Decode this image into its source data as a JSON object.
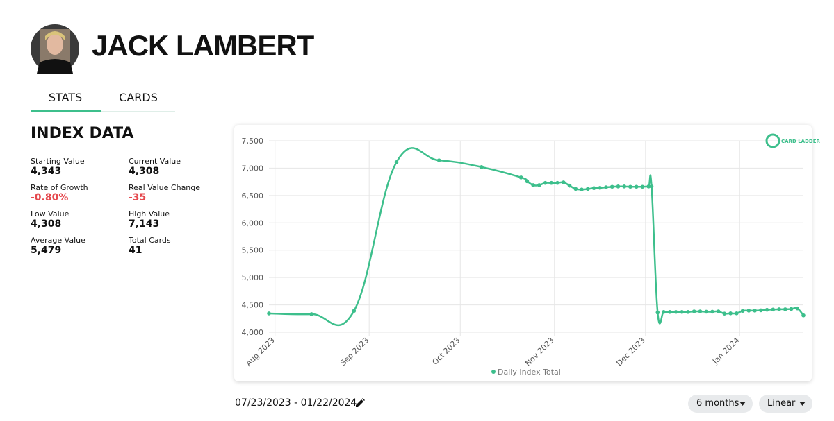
{
  "header": {
    "name": "JACK LAMBERT"
  },
  "tabs": [
    "STATS",
    "CARDS"
  ],
  "index_data": {
    "title": "INDEX DATA",
    "stats": [
      {
        "label": "Starting Value",
        "value": "4,343"
      },
      {
        "label": "Current Value",
        "value": "4,308"
      },
      {
        "label": "Rate of Growth",
        "value": "-0.80%"
      },
      {
        "label": "Real Value Change",
        "value": "-35"
      },
      {
        "label": "Low Value",
        "value": "4,308"
      },
      {
        "label": "High Value",
        "value": "7,143"
      },
      {
        "label": "Average Value",
        "value": "5,479"
      },
      {
        "label": "Total Cards",
        "value": "41"
      }
    ]
  },
  "chart_data": {
    "type": "line",
    "logo": "CARD LADDER",
    "x": [
      -2,
      12,
      26,
      40,
      54,
      68,
      81,
      83,
      85,
      87,
      89,
      91,
      93,
      95,
      97,
      99,
      101,
      103,
      105,
      107,
      109,
      111,
      113,
      115,
      117,
      119,
      121,
      123,
      124,
      126,
      128,
      130,
      132,
      134,
      136,
      138,
      140,
      142,
      144,
      146,
      148,
      150,
      152,
      154,
      156,
      158,
      160,
      162,
      164,
      166,
      168,
      170,
      172,
      174
    ],
    "series": [
      {
        "name": "Daily Index Total",
        "color": "#3dbf8c",
        "values": [
          4343,
          4330,
          4390,
          7110,
          7143,
          7020,
          6830,
          6760,
          6690,
          6690,
          6730,
          6730,
          6730,
          6740,
          6680,
          6620,
          6610,
          6620,
          6635,
          6640,
          6650,
          6660,
          6665,
          6665,
          6660,
          6660,
          6660,
          6665,
          6665,
          4360,
          4370,
          4370,
          4370,
          4370,
          4370,
          4380,
          4380,
          4375,
          4375,
          4380,
          4340,
          4345,
          4345,
          4390,
          4395,
          4395,
          4400,
          4410,
          4415,
          4420,
          4420,
          4425,
          4435,
          4308
        ]
      }
    ],
    "xlim": [
      -2,
      174
    ],
    "xticks": [
      {
        "value": 0,
        "label": "Aug 2023"
      },
      {
        "value": 31,
        "label": "Sep 2023"
      },
      {
        "value": 61,
        "label": "Oct 2023"
      },
      {
        "value": 92,
        "label": "Nov 2023"
      },
      {
        "value": 122,
        "label": "Dec 2023"
      },
      {
        "value": 153,
        "label": "Jan 2024"
      }
    ],
    "ylim": [
      4000,
      7500
    ],
    "yticks": [
      {
        "value": 4000,
        "label": "4,000"
      },
      {
        "value": 4500,
        "label": "4,500"
      },
      {
        "value": 5000,
        "label": "5,000"
      },
      {
        "value": 5500,
        "label": "5,500"
      },
      {
        "value": 6000,
        "label": "6,000"
      },
      {
        "value": 6500,
        "label": "6,500"
      },
      {
        "value": 7000,
        "label": "7,000"
      },
      {
        "value": 7500,
        "label": "7,500"
      }
    ],
    "grid": true
  },
  "date_range": "07/23/2023 - 01/22/2024",
  "controls": [
    "6 months",
    "Linear"
  ]
}
